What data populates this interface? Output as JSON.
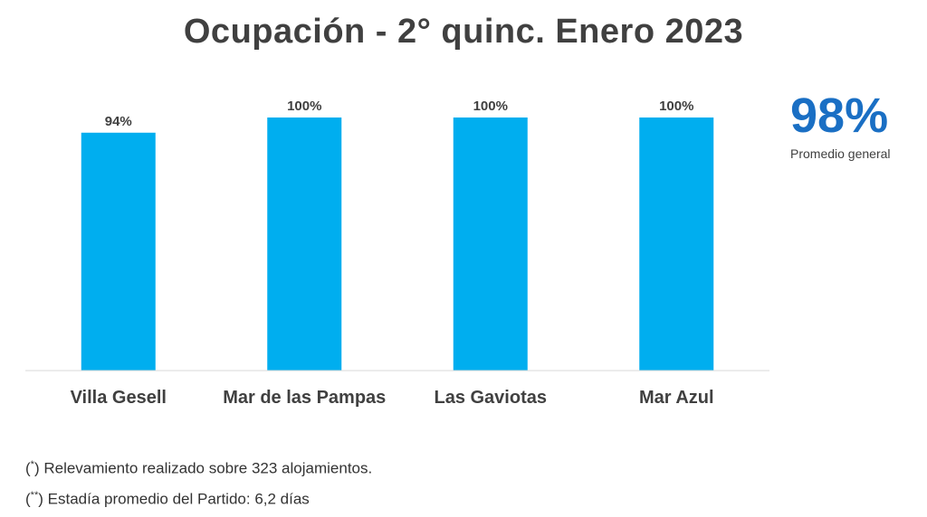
{
  "title": "Ocupación - 2° quinc. Enero 2023",
  "summary": {
    "value": "98%",
    "label": "Promedio general"
  },
  "notes": [
    {
      "open": "(",
      "mark": "*",
      "close": ")",
      "text": " Relevamiento realizado sobre 323 alojamientos."
    },
    {
      "open": "(",
      "mark": "**",
      "close": ")",
      "text": " Estadía promedio del Partido: 6,2 días"
    }
  ],
  "colors": {
    "bar": "#00aeef",
    "accent": "#1a6fc4",
    "text": "#404040"
  },
  "chart_data": {
    "type": "bar",
    "title": "Ocupación - 2° quinc. Enero 2023",
    "categories": [
      "Villa Gesell",
      "Mar de las Pampas",
      "Las Gaviotas",
      "Mar Azul"
    ],
    "values": [
      94,
      100,
      100,
      100
    ],
    "data_labels": [
      "94%",
      "100%",
      "100%",
      "100%"
    ],
    "ylim": [
      0,
      100
    ],
    "grid": false,
    "legend": "none",
    "xlabel": "",
    "ylabel": ""
  }
}
